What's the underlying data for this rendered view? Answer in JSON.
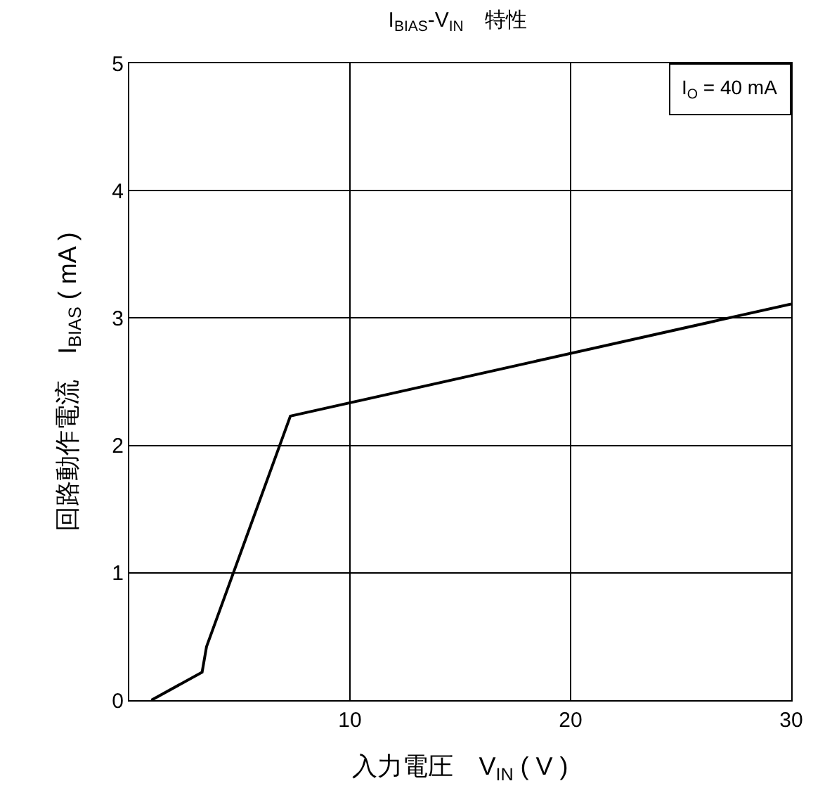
{
  "chart_data": {
    "type": "line",
    "title": "I$_{BIAS}$-V$_{IN}$　特性",
    "xlabel": "入力電圧　V$_{IN}$ ( V )",
    "ylabel": "回路動作電流　I$_{BIAS}$ ( mA )",
    "x": [
      1.0,
      3.3,
      3.5,
      7.3,
      30
    ],
    "series": [
      {
        "color": "#000000",
        "values": [
          0,
          0.22,
          0.42,
          2.23,
          3.11
        ]
      }
    ],
    "xlim": [
      0,
      30
    ],
    "xticks": [
      10,
      20,
      30
    ],
    "ylim": [
      0,
      5
    ],
    "yticks": [
      0,
      1,
      2,
      3,
      4,
      5
    ],
    "grid": true,
    "marker": "none",
    "line_style": "solid",
    "annotations": [
      "I$_{O}$ = 40 mA"
    ]
  }
}
